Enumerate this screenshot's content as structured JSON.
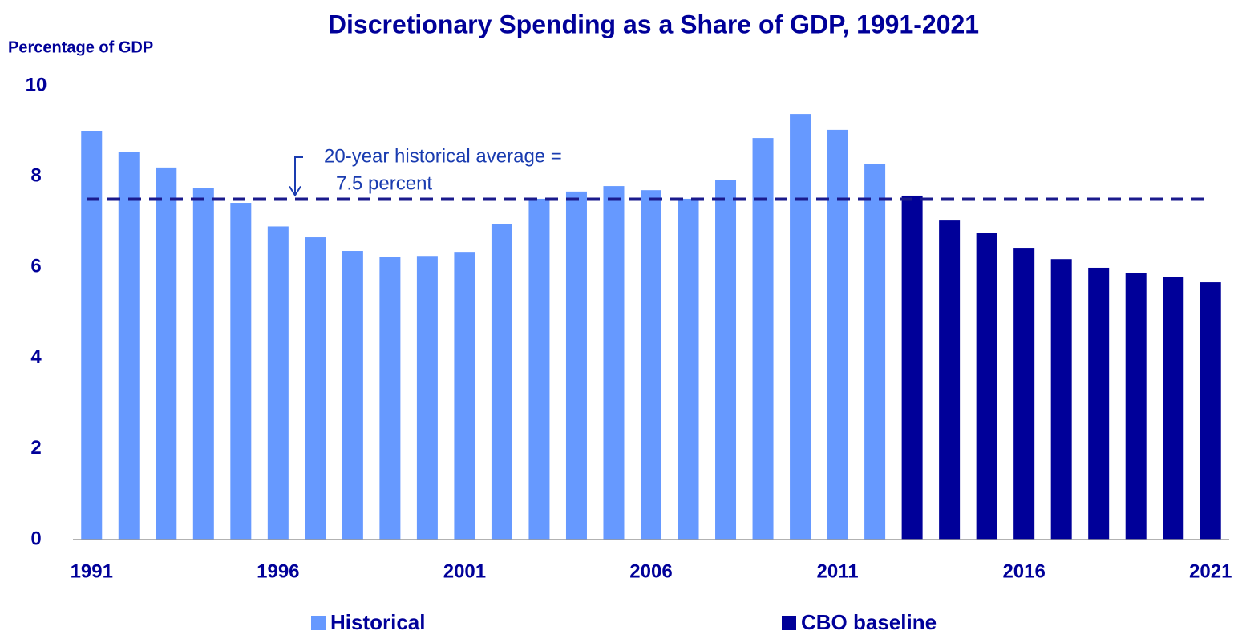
{
  "chart_data": {
    "type": "bar",
    "title": "Discretionary Spending as a Share of GDP, 1991-2021",
    "y_label": "Percentage of GDP",
    "categories": [
      "1991",
      null,
      null,
      null,
      null,
      "1996",
      null,
      null,
      null,
      null,
      "2001",
      null,
      null,
      null,
      null,
      "2006",
      null,
      null,
      null,
      null,
      "2011",
      null,
      null,
      null,
      null,
      "2016",
      null,
      null,
      null,
      null,
      "2021"
    ],
    "series": [
      {
        "name": "Historical",
        "color": "#6699ff",
        "values": [
          9.0,
          8.55,
          8.2,
          7.75,
          7.42,
          6.9,
          6.66,
          6.36,
          6.22,
          6.25,
          6.34,
          6.96,
          7.51,
          7.67,
          7.79,
          7.7,
          7.51,
          7.92,
          8.85,
          9.38,
          9.03,
          8.27,
          null,
          null,
          null,
          null,
          null,
          null,
          null,
          null,
          null
        ]
      },
      {
        "name": "CBO baseline",
        "color": "#000099",
        "values": [
          null,
          null,
          null,
          null,
          null,
          null,
          null,
          null,
          null,
          null,
          null,
          null,
          null,
          null,
          null,
          null,
          null,
          null,
          null,
          null,
          null,
          null,
          7.58,
          7.03,
          6.75,
          6.43,
          6.18,
          5.99,
          5.88,
          5.78,
          5.67
        ]
      }
    ],
    "reference_line": {
      "value": 7.5,
      "color": "#1a1a8c",
      "label": [
        "20-year historical average =",
        "7.5 percent"
      ]
    },
    "ylim": [
      0,
      10
    ],
    "yticks": [
      0,
      2,
      4,
      6,
      8,
      10
    ],
    "grid": false
  }
}
